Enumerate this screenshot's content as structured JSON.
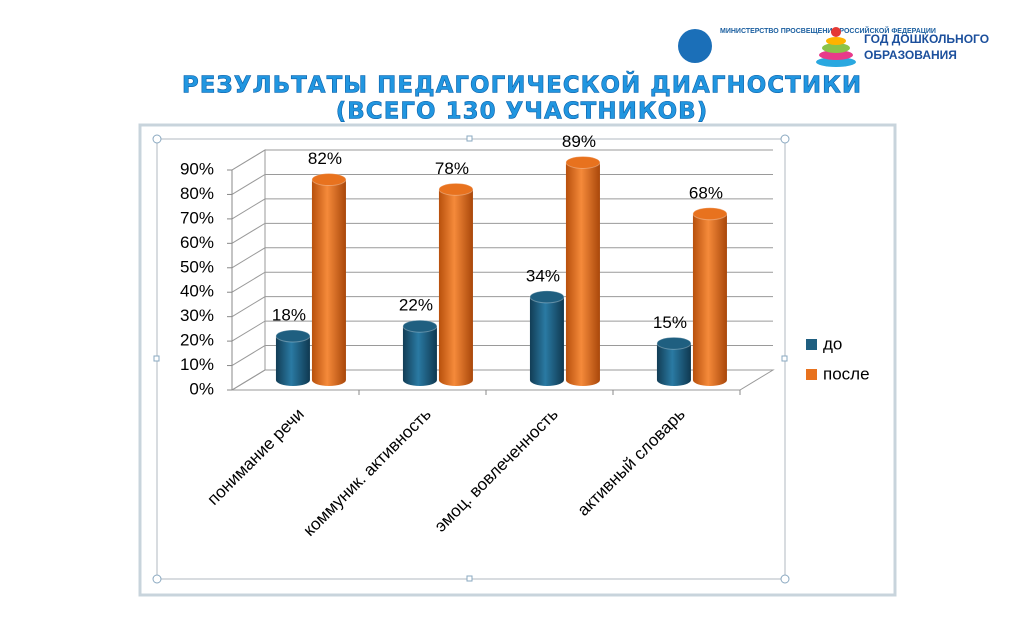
{
  "header": {
    "ministry": "МИНИСТЕРСТВО ПРОСВЕЩЕНИЯ РОССИЙСКОЙ ФЕДЕРАЦИИ",
    "year_line1": "ГОД ДОШКОЛЬНОГО",
    "year_line2": "ОБРАЗОВАНИЯ"
  },
  "chart_data": {
    "type": "bar",
    "title": "РЕЗУЛЬТАТЫ ПЕДАГОГИЧЕСКОЙ ДИАГНОСТИКИ",
    "subtitle": "(ВСЕГО 130 УЧАСТНИКОВ)",
    "categories": [
      "понимание речи",
      "коммуник. активность",
      "эмоц. вовлеченность",
      "активный словарь"
    ],
    "series": [
      {
        "name": "до",
        "color": "#1f5f80",
        "values": [
          18,
          22,
          34,
          15
        ],
        "value_labels": [
          "18%",
          "22%",
          "34%",
          "15%"
        ]
      },
      {
        "name": "после",
        "color": "#e8721e",
        "values": [
          82,
          78,
          89,
          68
        ],
        "value_labels": [
          "82%",
          "78%",
          "89%",
          "68%"
        ]
      }
    ],
    "ylim": [
      0,
      90
    ],
    "yticks": [
      {
        "value": 0,
        "label": "0%"
      },
      {
        "value": 10,
        "label": "10%"
      },
      {
        "value": 20,
        "label": "20%"
      },
      {
        "value": 30,
        "label": "30%"
      },
      {
        "value": 40,
        "label": "40%"
      },
      {
        "value": 50,
        "label": "50%"
      },
      {
        "value": 60,
        "label": "60%"
      },
      {
        "value": 70,
        "label": "70%"
      },
      {
        "value": 80,
        "label": "80%"
      },
      {
        "value": 90,
        "label": "90%"
      }
    ],
    "grid": true,
    "legend": "right"
  }
}
